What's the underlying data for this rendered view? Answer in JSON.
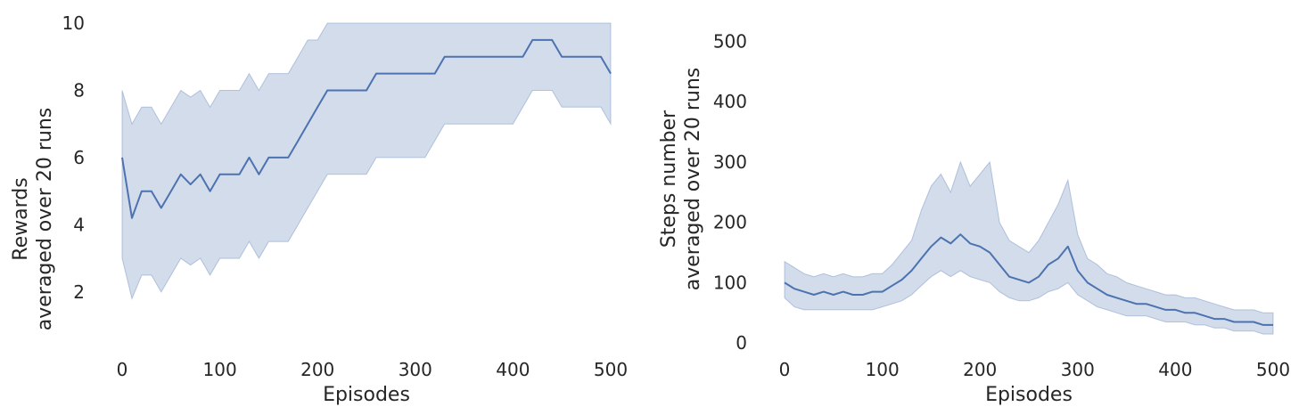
{
  "chart_data": [
    {
      "type": "line",
      "xlabel": "Episodes",
      "ylabel_lines": [
        "Rewards",
        "averaged over 20 runs"
      ],
      "xlim": [
        0,
        500
      ],
      "ylim": [
        0.3,
        10
      ],
      "xticks": [
        0,
        100,
        200,
        300,
        400,
        500
      ],
      "yticks": [
        2,
        4,
        6,
        8,
        10
      ],
      "grid": false,
      "line_color": "#4c72b0",
      "band_color": "#4c72b0",
      "band_opacity": 0.25,
      "series": [
        {
          "x": [
            0,
            10,
            20,
            30,
            40,
            50,
            60,
            70,
            80,
            90,
            100,
            110,
            120,
            130,
            140,
            150,
            160,
            170,
            180,
            190,
            200,
            210,
            220,
            230,
            240,
            250,
            260,
            270,
            280,
            290,
            300,
            310,
            320,
            330,
            340,
            350,
            360,
            370,
            380,
            390,
            400,
            410,
            420,
            430,
            440,
            450,
            460,
            470,
            480,
            490,
            500
          ],
          "mean": [
            6.0,
            4.2,
            5.0,
            5.0,
            4.5,
            5.0,
            5.5,
            5.2,
            5.5,
            5.0,
            5.5,
            5.5,
            5.5,
            6.0,
            5.5,
            6.0,
            6.0,
            6.0,
            6.5,
            7.0,
            7.5,
            8.0,
            8.0,
            8.0,
            8.0,
            8.0,
            8.5,
            8.5,
            8.5,
            8.5,
            8.5,
            8.5,
            8.5,
            9.0,
            9.0,
            9.0,
            9.0,
            9.0,
            9.0,
            9.0,
            9.0,
            9.0,
            9.5,
            9.5,
            9.5,
            9.0,
            9.0,
            9.0,
            9.0,
            9.0,
            8.5
          ],
          "lower": [
            3.0,
            1.8,
            2.5,
            2.5,
            2.0,
            2.5,
            3.0,
            2.8,
            3.0,
            2.5,
            3.0,
            3.0,
            3.0,
            3.5,
            3.0,
            3.5,
            3.5,
            3.5,
            4.0,
            4.5,
            5.0,
            5.5,
            5.5,
            5.5,
            5.5,
            5.5,
            6.0,
            6.0,
            6.0,
            6.0,
            6.0,
            6.0,
            6.5,
            7.0,
            7.0,
            7.0,
            7.0,
            7.0,
            7.0,
            7.0,
            7.0,
            7.5,
            8.0,
            8.0,
            8.0,
            7.5,
            7.5,
            7.5,
            7.5,
            7.5,
            7.0
          ],
          "upper": [
            8.0,
            7.0,
            7.5,
            7.5,
            7.0,
            7.5,
            8.0,
            7.8,
            8.0,
            7.5,
            8.0,
            8.0,
            8.0,
            8.5,
            8.0,
            8.5,
            8.5,
            8.5,
            9.0,
            9.5,
            9.5,
            10.0,
            10.0,
            10.0,
            10.0,
            10.0,
            10.0,
            10.0,
            10.0,
            10.0,
            10.0,
            10.0,
            10.0,
            10.0,
            10.0,
            10.0,
            10.0,
            10.0,
            10.0,
            10.0,
            10.0,
            10.0,
            10.0,
            10.0,
            10.0,
            10.0,
            10.0,
            10.0,
            10.0,
            10.0,
            10.0
          ]
        }
      ]
    },
    {
      "type": "line",
      "xlabel": "Episodes",
      "ylabel_lines": [
        "Steps number",
        "averaged over 20 runs"
      ],
      "xlim": [
        0,
        500
      ],
      "ylim": [
        -10,
        530
      ],
      "xticks": [
        0,
        100,
        200,
        300,
        400,
        500
      ],
      "yticks": [
        0,
        100,
        200,
        300,
        400,
        500
      ],
      "grid": false,
      "line_color": "#4c72b0",
      "band_color": "#4c72b0",
      "band_opacity": 0.25,
      "series": [
        {
          "x": [
            0,
            10,
            20,
            30,
            40,
            50,
            60,
            70,
            80,
            90,
            100,
            110,
            120,
            130,
            140,
            150,
            160,
            170,
            180,
            190,
            200,
            210,
            220,
            230,
            240,
            250,
            260,
            270,
            280,
            290,
            300,
            310,
            320,
            330,
            340,
            350,
            360,
            370,
            380,
            390,
            400,
            410,
            420,
            430,
            440,
            450,
            460,
            470,
            480,
            490,
            500
          ],
          "mean": [
            100,
            90,
            85,
            80,
            85,
            80,
            85,
            80,
            80,
            85,
            85,
            95,
            105,
            120,
            140,
            160,
            175,
            165,
            180,
            165,
            160,
            150,
            130,
            110,
            105,
            100,
            110,
            130,
            140,
            160,
            120,
            100,
            90,
            80,
            75,
            70,
            65,
            65,
            60,
            55,
            55,
            50,
            50,
            45,
            40,
            40,
            35,
            35,
            35,
            30,
            30
          ],
          "lower": [
            75,
            60,
            55,
            55,
            55,
            55,
            55,
            55,
            55,
            55,
            60,
            65,
            70,
            80,
            95,
            110,
            120,
            110,
            120,
            110,
            105,
            100,
            85,
            75,
            70,
            70,
            75,
            85,
            90,
            100,
            80,
            70,
            60,
            55,
            50,
            45,
            45,
            45,
            40,
            35,
            35,
            35,
            30,
            30,
            25,
            25,
            20,
            20,
            20,
            15,
            15
          ],
          "upper": [
            135,
            125,
            115,
            110,
            115,
            110,
            115,
            110,
            110,
            115,
            115,
            130,
            150,
            170,
            220,
            260,
            280,
            250,
            300,
            260,
            280,
            300,
            200,
            170,
            160,
            150,
            170,
            200,
            230,
            270,
            180,
            140,
            130,
            115,
            110,
            100,
            95,
            90,
            85,
            80,
            80,
            75,
            75,
            70,
            65,
            60,
            55,
            55,
            55,
            50,
            50
          ]
        }
      ]
    }
  ]
}
